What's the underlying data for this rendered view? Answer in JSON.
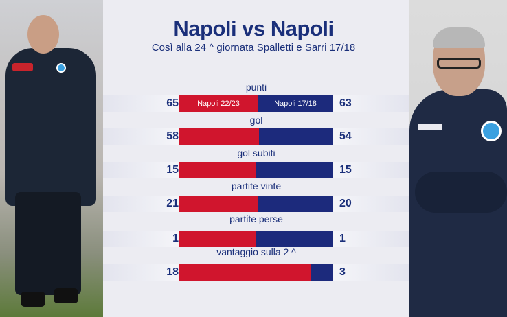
{
  "header": {
    "title": "Napoli vs Napoli",
    "subtitle": "Così alla 24 ^ giornata Spalletti e Sarri 17/18"
  },
  "legend": {
    "left_team": "Napoli 22/23",
    "right_team": "Napoli 17/18"
  },
  "colors": {
    "left_team": "#d0152d",
    "right_team": "#1c2a7c",
    "text": "#1a2f7a"
  },
  "stats": [
    {
      "label": "punti",
      "left": 65,
      "right": 63
    },
    {
      "label": "gol",
      "left": 58,
      "right": 54
    },
    {
      "label": "gol subiti",
      "left": 15,
      "right": 15
    },
    {
      "label": "partite vinte",
      "left": 21,
      "right": 20
    },
    {
      "label": "partite perse",
      "left": 1,
      "right": 1
    },
    {
      "label": "vantaggio sulla 2 ^",
      "left": 18,
      "right": 3
    }
  ]
}
